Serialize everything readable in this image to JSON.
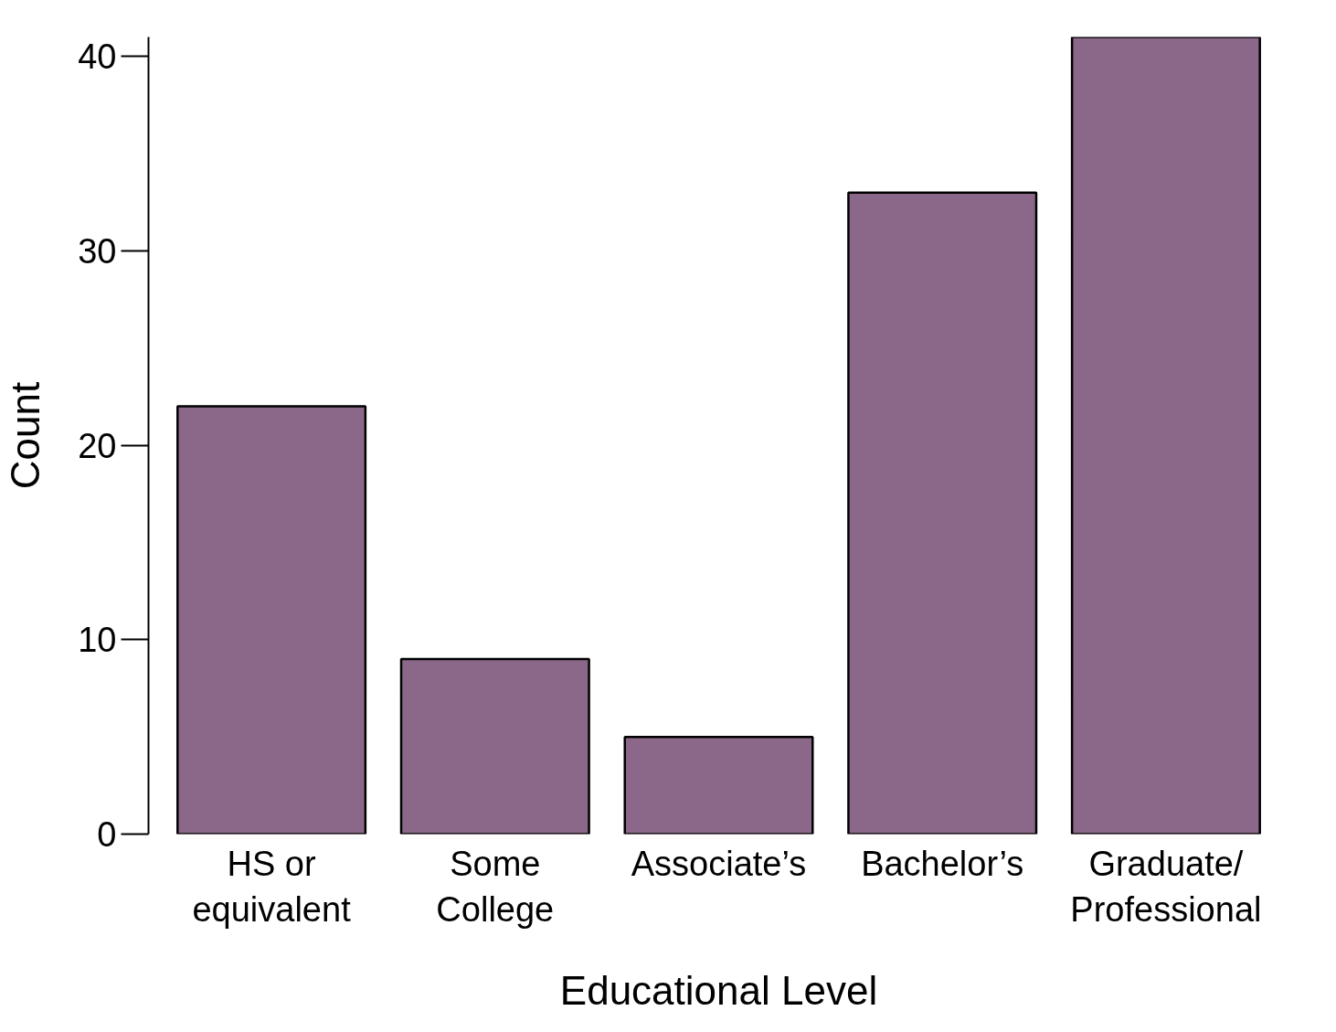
{
  "chart_data": {
    "type": "bar",
    "xlabel": "Educational Level",
    "ylabel": "Count",
    "categories": [
      "HS or\nequivalent",
      "Some\nCollege",
      "Associate’s",
      "Bachelor’s",
      "Graduate/\nProfessional"
    ],
    "values": [
      22,
      9,
      5,
      33,
      41
    ],
    "color": "#8b6889",
    "ylim": [
      0,
      41
    ],
    "yticks": [
      0,
      10,
      20,
      30,
      40
    ],
    "grid": false
  }
}
